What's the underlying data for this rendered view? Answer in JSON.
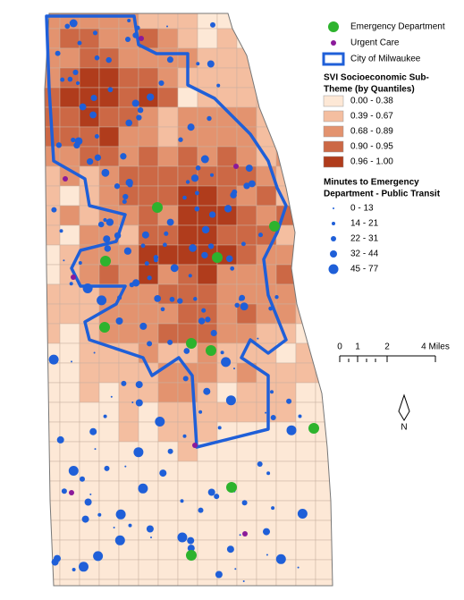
{
  "legend": {
    "points": [
      "Emergency Department",
      "Urgent Care",
      "City of Milwaukee"
    ],
    "svi": {
      "title": [
        "SVI Socioeconomic Sub-",
        "Theme (by Quantiles)"
      ],
      "classes": [
        "0.00 - 0.38",
        "0.39 - 0.67",
        "0.68 - 0.89",
        "0.90 - 0.95",
        "0.96 - 1.00"
      ]
    },
    "transit": {
      "title": [
        "Minutes to Emergency",
        "Department - Public Transit"
      ],
      "classes": [
        "0 - 13",
        "14 - 21",
        "22 - 31",
        "32 - 44",
        "45 - 77"
      ]
    }
  },
  "scale": {
    "labels": [
      "0",
      "1",
      "2",
      "4 Miles"
    ]
  },
  "north": "N"
}
